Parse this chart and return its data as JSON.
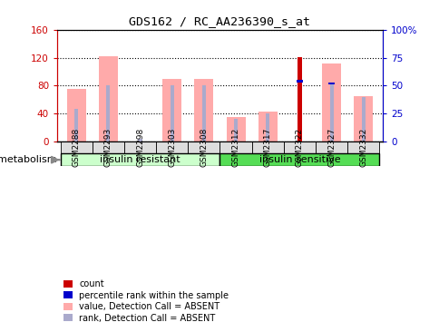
{
  "title": "GDS162 / RC_AA236390_s_at",
  "samples": [
    "GSM2288",
    "GSM2293",
    "GSM2298",
    "GSM2303",
    "GSM2308",
    "GSM2312",
    "GSM2317",
    "GSM2322",
    "GSM2327",
    "GSM2332"
  ],
  "value_absent": [
    75,
    122,
    0,
    90,
    90,
    35,
    42,
    0,
    112,
    65
  ],
  "rank_absent_pct": [
    29,
    50,
    2.5,
    50,
    50,
    20,
    25,
    0,
    51,
    40
  ],
  "count_value": [
    0,
    0,
    0,
    0,
    0,
    0,
    0,
    121,
    0,
    0
  ],
  "percentile_rank_pct": [
    0,
    0,
    0,
    0,
    0,
    0,
    0,
    54,
    52,
    0
  ],
  "groups": [
    {
      "label": "insulin resistant",
      "start": 0,
      "end": 5,
      "color": "#ccffcc"
    },
    {
      "label": "insulin sensitive",
      "start": 5,
      "end": 10,
      "color": "#55dd55"
    }
  ],
  "group_label": "metabolism",
  "ylim_left": [
    0,
    160
  ],
  "ylim_right": [
    0,
    100
  ],
  "yticks_left": [
    0,
    40,
    80,
    120,
    160
  ],
  "yticks_right": [
    0,
    25,
    50,
    75,
    100
  ],
  "yticklabels_right": [
    "0",
    "25",
    "50",
    "75",
    "100%"
  ],
  "color_count": "#cc0000",
  "color_percentile": "#0000cc",
  "color_value_absent": "#ffaaaa",
  "color_rank_absent": "#aaaacc",
  "bar_width": 0.6,
  "rank_bar_width": 0.12,
  "background_color": "#ffffff",
  "ylabel_left_color": "#cc0000",
  "ylabel_right_color": "#0000cc"
}
